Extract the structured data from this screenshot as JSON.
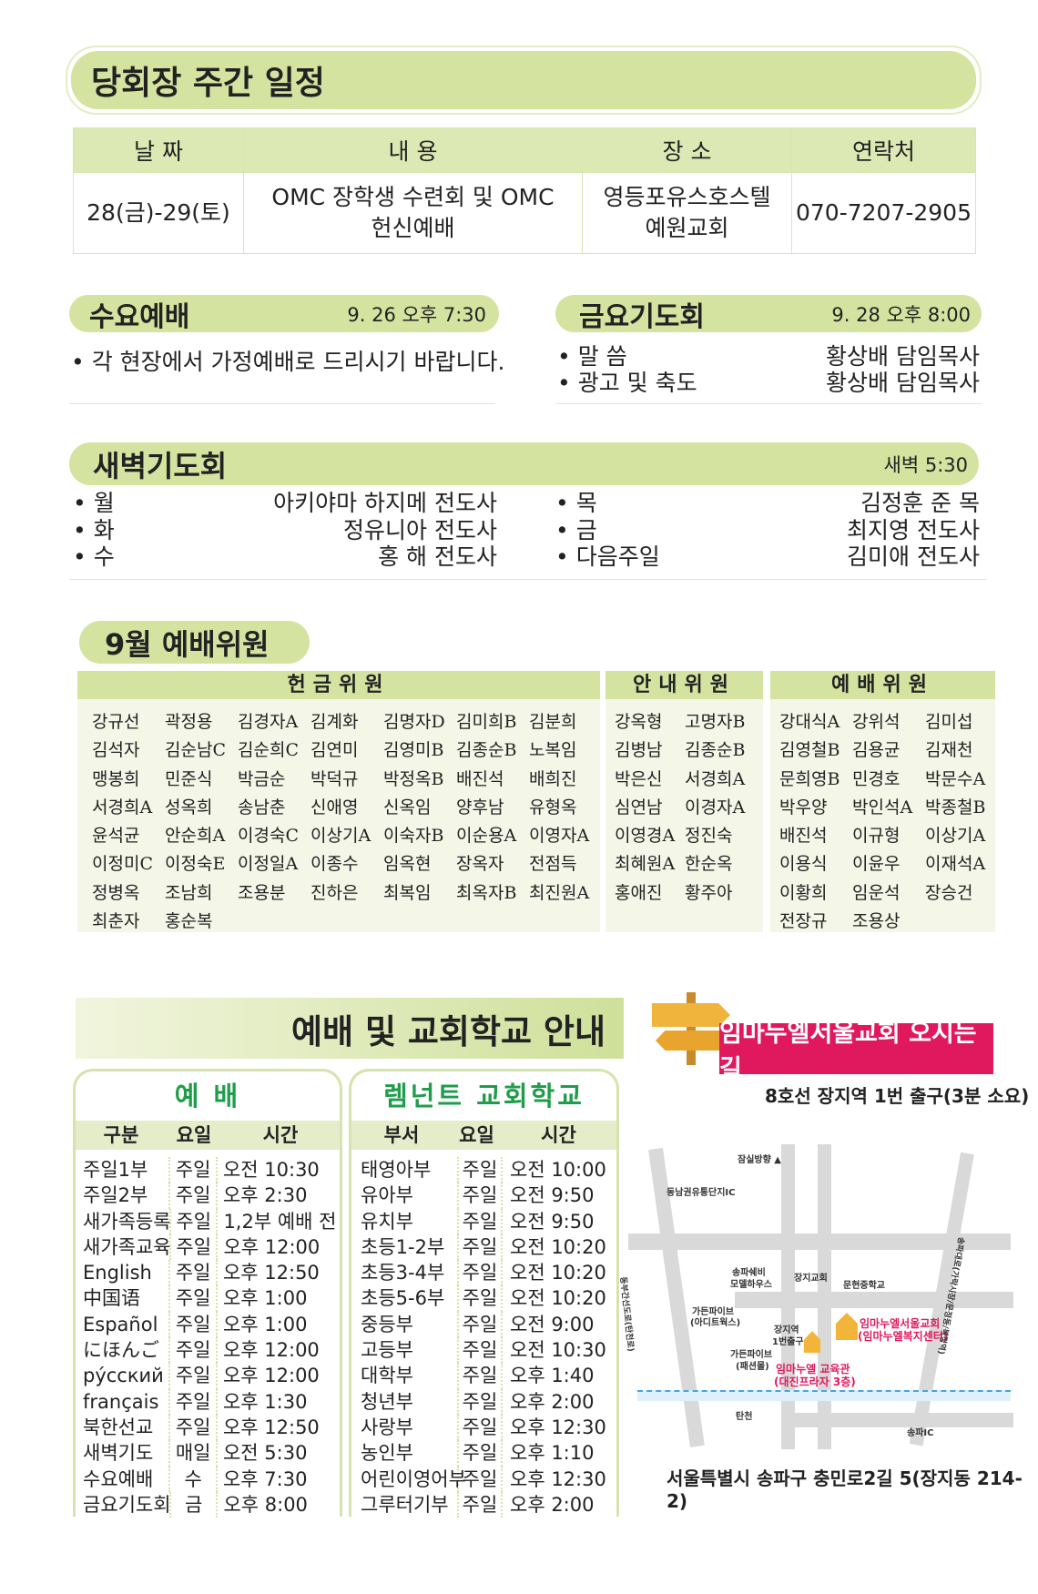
{
  "schedule": {
    "title": "당회장 주간 일정",
    "headers": [
      "날 짜",
      "내 용",
      "장 소",
      "연락처"
    ],
    "row": {
      "date": "28(금)-29(토)",
      "content_line1": "OMC 장학생 수련회 및 OMC",
      "content_line2": "헌신예배",
      "place_line1": "영등포유스호스텔",
      "place_line2": "예원교회",
      "contact": "070-7207-2905"
    }
  },
  "wednesday": {
    "title": "수요예배",
    "datetime": "9. 26  오후 7:30",
    "note": "• 각 현장에서 가정예배로 드리시기 바랍니다."
  },
  "friday": {
    "title": "금요기도회",
    "datetime": "9. 28  오후 8:00",
    "items": [
      {
        "label": "• 말  씀",
        "value": "황상배 담임목사"
      },
      {
        "label": "• 광고 및 축도",
        "value": "황상배 담임목사"
      }
    ]
  },
  "dawn": {
    "title": "새벽기도회",
    "time": "새벽 5:30",
    "left": [
      {
        "day": "• 월",
        "name": "아키야마 하지메 전도사"
      },
      {
        "day": "• 화",
        "name": "정유니아 전도사"
      },
      {
        "day": "• 수",
        "name": "홍  해 전도사"
      }
    ],
    "right": [
      {
        "day": "• 목",
        "name": "김정훈 준  목"
      },
      {
        "day": "• 금",
        "name": "최지영 전도사"
      },
      {
        "day": "• 다음주일",
        "name": "김미애 전도사"
      }
    ]
  },
  "committee": {
    "title": "9월 예배위원",
    "offering": {
      "title": "헌금위원",
      "names": [
        "강규선",
        "곽정용",
        "김경자A",
        "김계화",
        "김명자D",
        "김미희B",
        "김분희",
        "김석자",
        "김순남C",
        "김순희C",
        "김연미",
        "김영미B",
        "김종순B",
        "노복임",
        "맹봉희",
        "민준식",
        "박금순",
        "박덕규",
        "박정옥B",
        "배진석",
        "배희진",
        "서경희A",
        "성옥희",
        "송남춘",
        "신애영",
        "신옥임",
        "양후남",
        "유형옥",
        "윤석균",
        "안순희A",
        "이경숙C",
        "이상기A",
        "이숙자B",
        "이순용A",
        "이영자A",
        "이정미C",
        "이정숙E",
        "이정일A",
        "이종수",
        "임옥현",
        "장옥자",
        "전점득",
        "정병옥",
        "조남희",
        "조용분",
        "진하은",
        "최복임",
        "최옥자B",
        "최진원A",
        "최춘자",
        "홍순복"
      ]
    },
    "usher": {
      "title": "안내위원",
      "names": [
        "강옥형",
        "고명자B",
        "김병남",
        "김종순B",
        "박은신",
        "서경희A",
        "심연남",
        "이경자A",
        "이영경A",
        "정진숙",
        "최혜원A",
        "한순옥",
        "홍애진",
        "황주아"
      ]
    },
    "worship": {
      "title": "예배위원",
      "names": [
        "강대식A",
        "강위석",
        "김미섭",
        "김영철B",
        "김용균",
        "김재천",
        "문희영B",
        "민경호",
        "박문수A",
        "박우양",
        "박인석A",
        "박종철B",
        "배진석",
        "이규형",
        "이상기A",
        "이용식",
        "이윤우",
        "이재석A",
        "이황희",
        "임운석",
        "장승건",
        "전장규",
        "조용상"
      ]
    }
  },
  "guide": {
    "title": "예배 및 교회학교 안내",
    "worship": {
      "title": "예    배",
      "headers": [
        "구분",
        "요일",
        "시간"
      ],
      "rows": [
        [
          "주일1부",
          "주일",
          "오전 10:30"
        ],
        [
          "주일2부",
          "주일",
          "오후 2:30"
        ],
        [
          "새가족등록",
          "주일",
          "1,2부 예배 전"
        ],
        [
          "새가족교육",
          "주일",
          "오후 12:00"
        ],
        [
          "English",
          "주일",
          "오후 12:50"
        ],
        [
          "中国语",
          "주일",
          "오후 1:00"
        ],
        [
          "Español",
          "주일",
          "오후 1:00"
        ],
        [
          "にほんご",
          "주일",
          "오후 12:00"
        ],
        [
          "рýсский",
          "주일",
          "오후 12:00"
        ],
        [
          "français",
          "주일",
          "오후 1:30"
        ],
        [
          "북한선교",
          "주일",
          "오후 12:50"
        ],
        [
          "새벽기도",
          "매일",
          "오전 5:30"
        ],
        [
          "수요예배",
          "수",
          "오후 7:30"
        ],
        [
          "금요기도회",
          "금",
          "오후 8:00"
        ]
      ]
    },
    "school": {
      "title": "렘넌트 교회학교",
      "headers": [
        "부서",
        "요일",
        "시간"
      ],
      "rows": [
        [
          "태영아부",
          "주일",
          "오전 10:00"
        ],
        [
          "유아부",
          "주일",
          "오전 9:50"
        ],
        [
          "유치부",
          "주일",
          "오전 9:50"
        ],
        [
          "초등1-2부",
          "주일",
          "오전 10:20"
        ],
        [
          "초등3-4부",
          "주일",
          "오전 10:20"
        ],
        [
          "초등5-6부",
          "주일",
          "오전 10:20"
        ],
        [
          "중등부",
          "주일",
          "오전 9:00"
        ],
        [
          "고등부",
          "주일",
          "오전 10:30"
        ],
        [
          "대학부",
          "주일",
          "오후 1:40"
        ],
        [
          "청년부",
          "주일",
          "오후 2:00"
        ],
        [
          "사랑부",
          "주일",
          "오후 12:30"
        ],
        [
          "농인부",
          "주일",
          "오후 1:10"
        ],
        [
          "어린이영어부",
          "주일",
          "오후 12:30"
        ],
        [
          "그루터기부",
          "주일",
          "오후 2:00"
        ]
      ]
    }
  },
  "directions": {
    "title": "임마누엘서울교회 오시는 길",
    "subway": "8호선 장지역 1번 출구(3분 소요)",
    "address": "서울특별시 송파구 충민로2길 5(장지동 214-2)",
    "map_labels": {
      "jamsil": "잠실방향 ▲",
      "ic": "동남권유통단지IC",
      "songpa": "송파쉐비",
      "modelhouse": "모델하우스",
      "jangji_church": "장지교회",
      "munhyeon": "문현중학교",
      "garden1": "가든파이브",
      "garden1b": "(아디트웍스)",
      "garden2": "가든파이브",
      "garden2b": "(패션몰)",
      "station": "장지역",
      "exit": "1번출구",
      "church": "임마누엘서울교회",
      "church_sub": "(임마누엘복지센터)",
      "edu": "임마누엘 교육관",
      "edu_sub": "(대진프라자 3층)",
      "tancheon": "탄천",
      "songpa_ic": "송파IC",
      "road_left": "동부간선도로(탄천로)",
      "road_right": "송파대로(가락시장/문정동/복정역)"
    }
  },
  "colors": {
    "banner": "#d4e3a0",
    "green_title": "#1f9d4a",
    "pink": "#e0195f"
  }
}
